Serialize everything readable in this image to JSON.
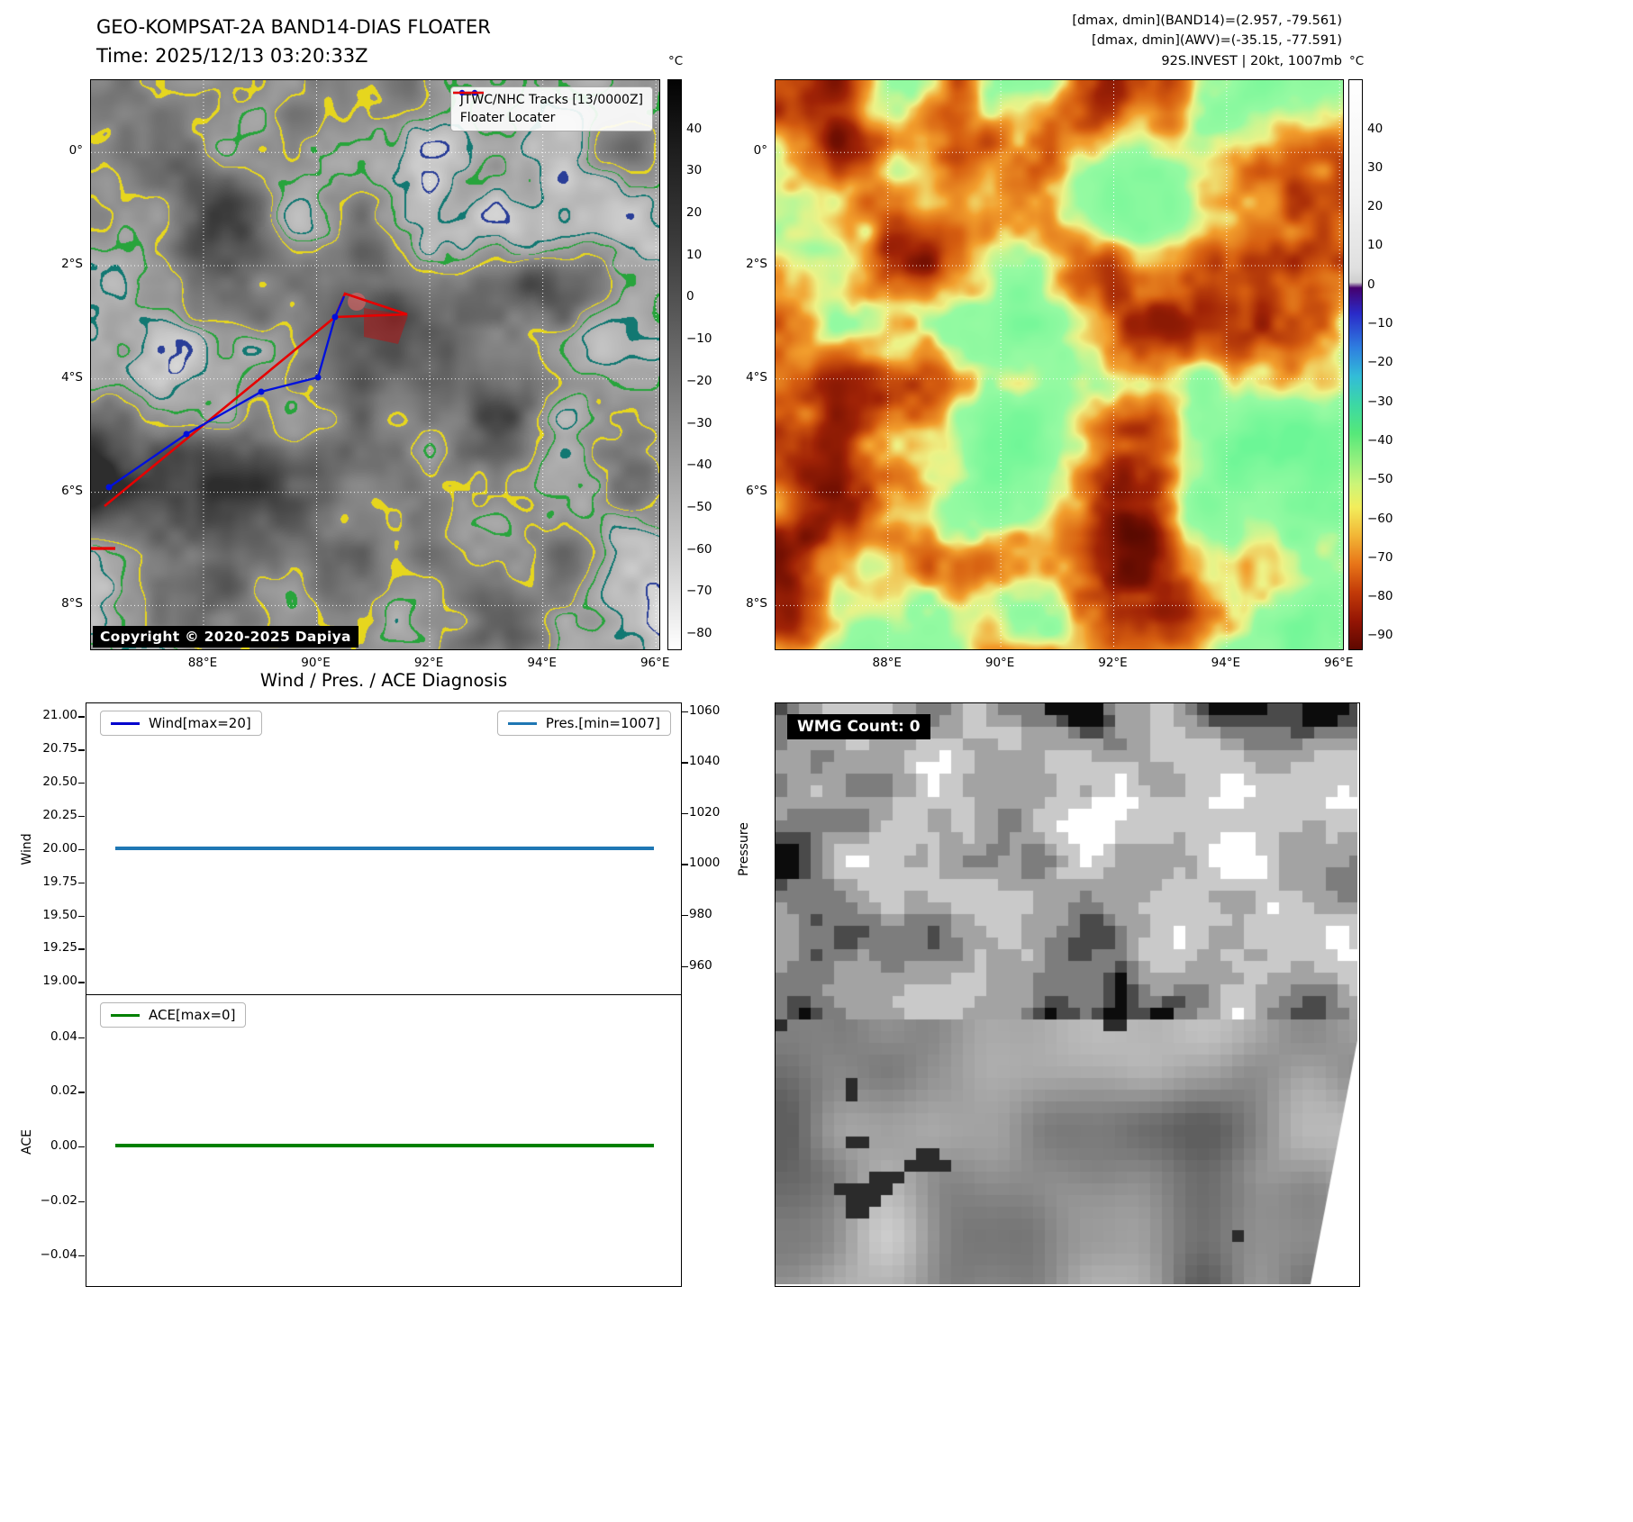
{
  "band14": {
    "title": "GEO-KOMPSAT-2A BAND14-DIAS FLOATER",
    "time": "Time: 2025/12/13 03:20:33Z",
    "legend": {
      "tracks_label": "JTWC/NHC Tracks [13/0000Z]",
      "floater_label": "Floater Locater",
      "tracks_color": "#0010dd",
      "floater_color": "#e60000"
    },
    "copyright": "Copyright © 2020-2025 Dapiya",
    "colorbar_unit": "°C",
    "colorbar_ticks": [
      "40",
      "30",
      "20",
      "10",
      "0",
      "−10",
      "−20",
      "−30",
      "−40",
      "−50",
      "−60",
      "−70",
      "−80"
    ],
    "lat_ticks": [
      "0°",
      "2°S",
      "4°S",
      "6°S",
      "8°S"
    ],
    "lon_ticks": [
      "88°E",
      "90°E",
      "92°E",
      "94°E",
      "96°E"
    ]
  },
  "awv": {
    "header1": "[dmax, dmin](BAND14)=(2.957, -79.561)",
    "header2": "[dmax, dmin](AWV)=(-35.15, -77.591)",
    "header3": "92S.INVEST | 20kt, 1007mb",
    "colorbar_unit": "°C",
    "colorbar_ticks": [
      "40",
      "30",
      "20",
      "10",
      "0",
      "−10",
      "−20",
      "−30",
      "−40",
      "−50",
      "−60",
      "−70",
      "−80",
      "−90"
    ],
    "lat_ticks": [
      "0°",
      "2°S",
      "4°S",
      "6°S",
      "8°S"
    ],
    "lon_ticks": [
      "88°E",
      "90°E",
      "92°E",
      "94°E",
      "96°E"
    ]
  },
  "diagnosis": {
    "title": "Wind / Pres. / ACE Diagnosis",
    "wind_legend": "Wind[max=20]",
    "pres_legend": "Pres.[min=1007]",
    "ace_legend": "ACE[max=0]",
    "wind_axis_label": "Wind",
    "pressure_axis_label": "Pressure",
    "ace_axis_label": "ACE",
    "wind_ticks": [
      "21.00",
      "20.75",
      "20.50",
      "20.25",
      "20.00",
      "19.75",
      "19.50",
      "19.25",
      "19.00"
    ],
    "pressure_ticks": [
      "1060",
      "1040",
      "1020",
      "1000",
      "980",
      "960"
    ],
    "ace_ticks": [
      "0.04",
      "0.02",
      "0.00",
      "−0.02",
      "−0.04"
    ]
  },
  "wmg": {
    "label": "WMG Count: 0"
  },
  "chart_data": [
    {
      "type": "line",
      "title": "Wind / Pres. / ACE Diagnosis",
      "subplot": "wind_pressure",
      "grid": false,
      "legend_position": "upper-left and upper-right",
      "series": [
        {
          "name": "Wind[max=20]",
          "axis": "left",
          "ylabel": "Wind",
          "ylim": [
            19.0,
            21.0
          ],
          "values": [
            20,
            20
          ],
          "color": "#0000cd"
        },
        {
          "name": "Pres.[min=1007]",
          "axis": "right",
          "ylabel": "Pressure",
          "ylim": [
            955,
            1062
          ],
          "values": [
            1007,
            1007
          ],
          "color": "#1f77b4"
        }
      ]
    },
    {
      "type": "line",
      "subplot": "ace",
      "grid": false,
      "legend_position": "upper-left",
      "series": [
        {
          "name": "ACE[max=0]",
          "axis": "left",
          "ylabel": "ACE",
          "ylim": [
            -0.05,
            0.05
          ],
          "values": [
            0,
            0
          ],
          "color": "#008000"
        }
      ]
    }
  ]
}
